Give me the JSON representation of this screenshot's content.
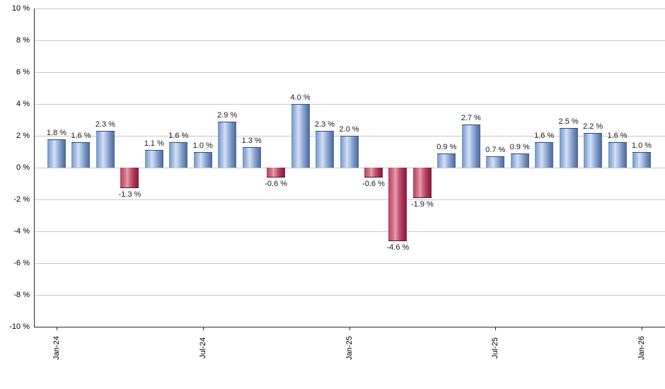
{
  "chart_data": {
    "type": "bar",
    "title": "",
    "xlabel": "",
    "ylabel": "",
    "ylim": [
      -10,
      10
    ],
    "grid": "horizontal",
    "unit": "%",
    "values": [
      1.8,
      1.6,
      2.3,
      -1.3,
      1.1,
      1.6,
      1.0,
      2.9,
      1.3,
      -0.6,
      4.0,
      2.3,
      2.0,
      -0.6,
      -4.6,
      -1.9,
      0.9,
      2.7,
      0.7,
      0.9,
      1.6,
      2.5,
      2.2,
      1.6,
      1.0
    ],
    "value_labels": [
      "1.8 %",
      "1.6 %",
      "2.3 %",
      "-1.3 %",
      "1.1 %",
      "1.6 %",
      "1.0 %",
      "2.9 %",
      "1.3 %",
      "-0.6 %",
      "4.0 %",
      "2.3 %",
      "2.0 %",
      "-0.6 %",
      "-4.6 %",
      "-1.9 %",
      "0.9 %",
      "2.7 %",
      "0.7 %",
      "0.9 %",
      "1.6 %",
      "2.5 %",
      "2.2 %",
      "1.6 %",
      "1.0 %"
    ],
    "x_ticks": [
      {
        "label": "Jan-24",
        "bar_index": 0
      },
      {
        "label": "Jul-24",
        "bar_index": 6
      },
      {
        "label": "Jan-25",
        "bar_index": 12
      },
      {
        "label": "Jul-25",
        "bar_index": 18
      },
      {
        "label": "Jan-26",
        "bar_index": 24
      }
    ],
    "y_ticks": [
      {
        "value": 10,
        "label": "10 %"
      },
      {
        "value": 8,
        "label": "8 %"
      },
      {
        "value": 6,
        "label": "6 %"
      },
      {
        "value": 4,
        "label": "4 %"
      },
      {
        "value": 2,
        "label": "2 %"
      },
      {
        "value": 0,
        "label": "0 %"
      },
      {
        "value": -2,
        "label": "-2 %"
      },
      {
        "value": -4,
        "label": "-4 %"
      },
      {
        "value": -6,
        "label": "-6 %"
      },
      {
        "value": -8,
        "label": "-8 %"
      },
      {
        "value": -10,
        "label": "-10 %"
      }
    ],
    "colors": {
      "positive_bar": "#7093c6",
      "positive_bar_highlight": "#d5e1f6",
      "negative_bar": "#b74162",
      "negative_bar_highlight": "#e99fb1",
      "gridline": "#c8c8c8",
      "axis": "#2a2a2a",
      "label_text": "#1a1a1a"
    },
    "legend": null
  }
}
